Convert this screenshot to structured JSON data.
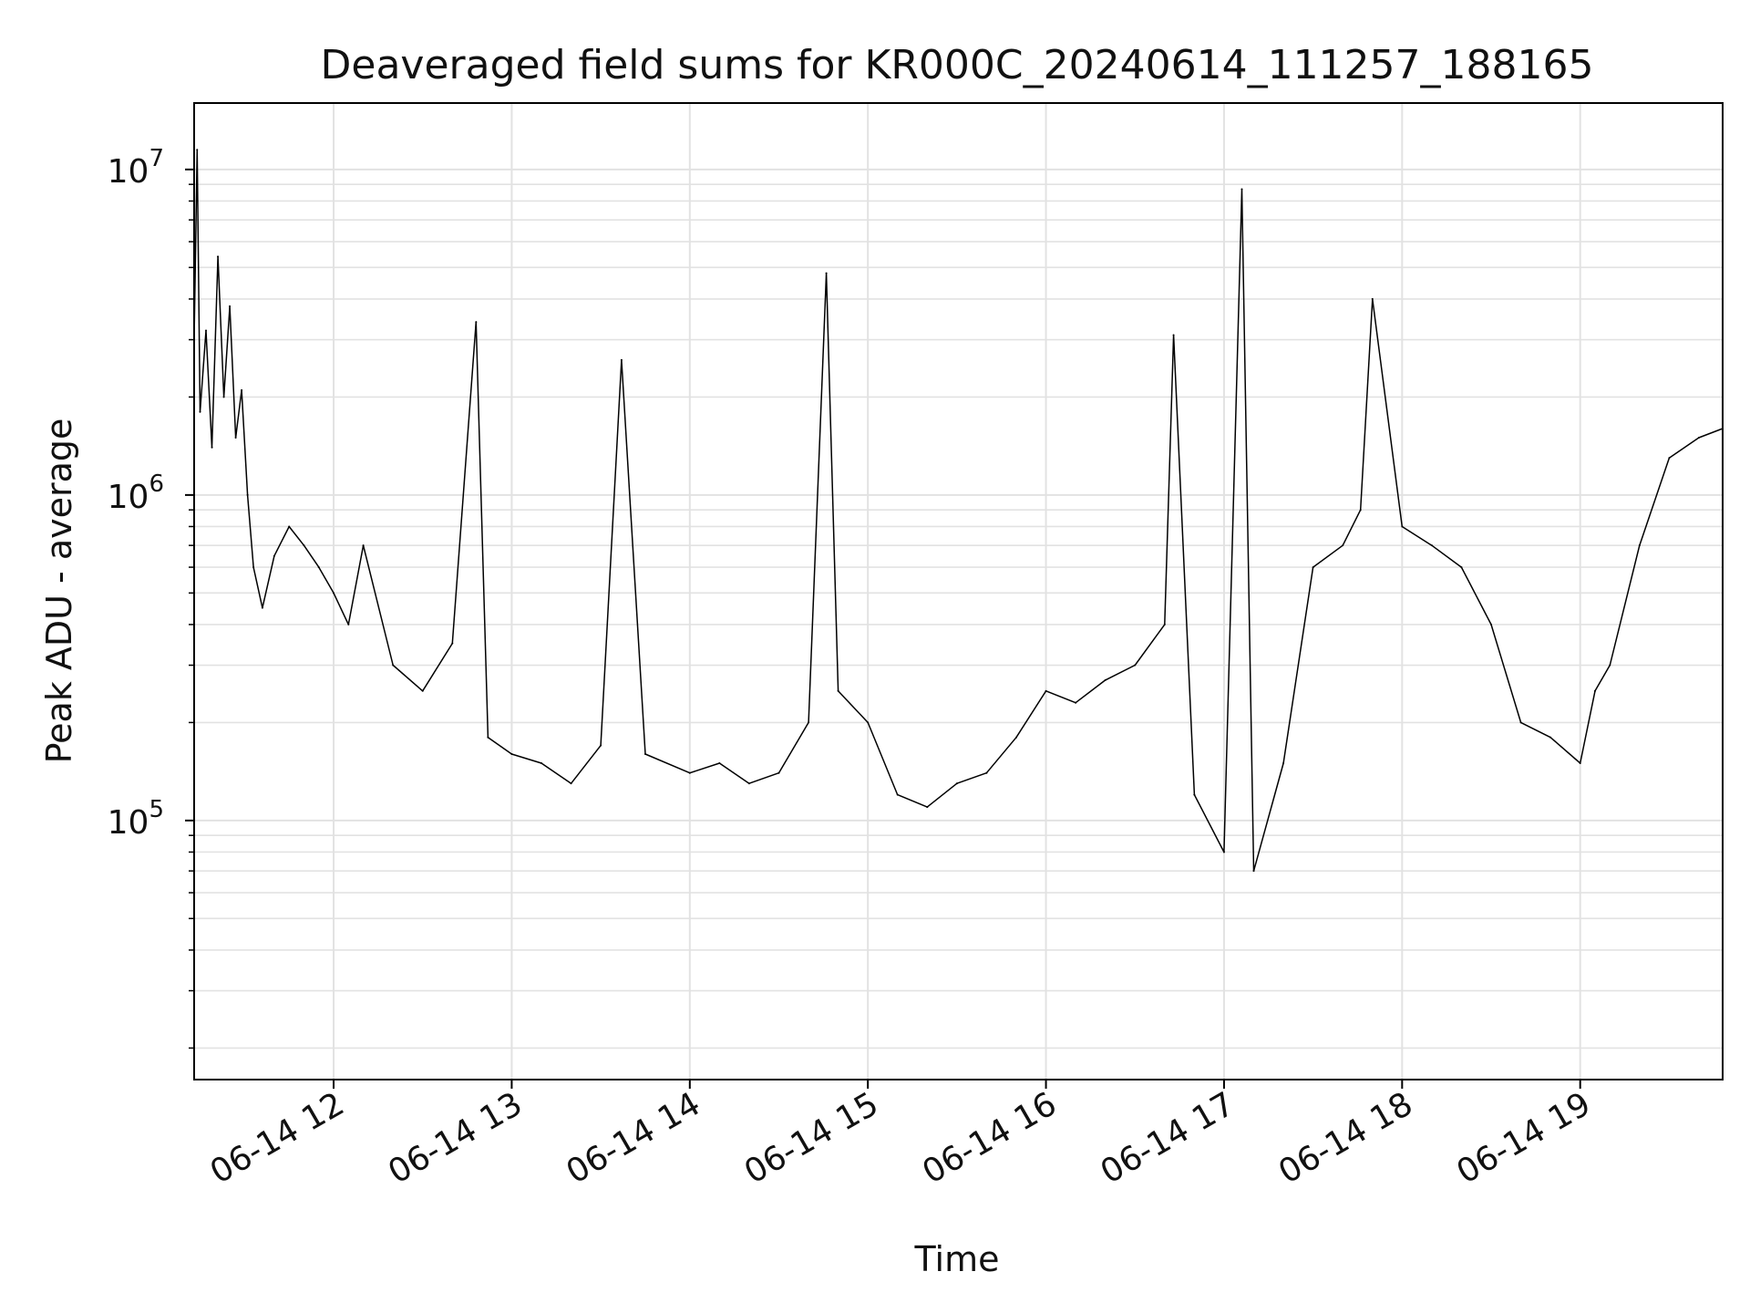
{
  "chart_data": {
    "type": "line",
    "title": "Deaveraged field sums for KR000C_20240614_111257_188165",
    "xlabel": "Time",
    "ylabel": "Peak ADU - average",
    "y_scale": "log",
    "grid": true,
    "line_color": "#000000",
    "grid_color": "#e2e2e2",
    "x_range": [
      "2024-06-14T11:13:00",
      "2024-06-14T19:48:00"
    ],
    "ylim": [
      16000,
      16000000
    ],
    "x_tick_values": [
      "2024-06-14T12:00",
      "2024-06-14T13:00",
      "2024-06-14T14:00",
      "2024-06-14T15:00",
      "2024-06-14T16:00",
      "2024-06-14T17:00",
      "2024-06-14T18:00",
      "2024-06-14T19:00"
    ],
    "x_tick_labels": [
      "06-14 12",
      "06-14 13",
      "06-14 14",
      "06-14 15",
      "06-14 16",
      "06-14 17",
      "06-14 18",
      "06-14 19"
    ],
    "y_ticks": [
      {
        "value": 100000,
        "base": "10",
        "exp": "5"
      },
      {
        "value": 1000000,
        "base": "10",
        "exp": "6"
      },
      {
        "value": 10000000,
        "base": "10",
        "exp": "7"
      }
    ],
    "series": [
      {
        "x": [
          "2024-06-14T11:13",
          "2024-06-14T11:14",
          "2024-06-14T11:15",
          "2024-06-14T11:17",
          "2024-06-14T11:19",
          "2024-06-14T11:21",
          "2024-06-14T11:23",
          "2024-06-14T11:25",
          "2024-06-14T11:27",
          "2024-06-14T11:29",
          "2024-06-14T11:31",
          "2024-06-14T11:33",
          "2024-06-14T11:36",
          "2024-06-14T11:40",
          "2024-06-14T11:45",
          "2024-06-14T11:50",
          "2024-06-14T11:55",
          "2024-06-14T12:00",
          "2024-06-14T12:05",
          "2024-06-14T12:10",
          "2024-06-14T12:20",
          "2024-06-14T12:30",
          "2024-06-14T12:40",
          "2024-06-14T12:48",
          "2024-06-14T12:52",
          "2024-06-14T13:00",
          "2024-06-14T13:10",
          "2024-06-14T13:20",
          "2024-06-14T13:30",
          "2024-06-14T13:37",
          "2024-06-14T13:45",
          "2024-06-14T14:00",
          "2024-06-14T14:10",
          "2024-06-14T14:20",
          "2024-06-14T14:30",
          "2024-06-14T14:40",
          "2024-06-14T14:46",
          "2024-06-14T14:50",
          "2024-06-14T15:00",
          "2024-06-14T15:10",
          "2024-06-14T15:20",
          "2024-06-14T15:30",
          "2024-06-14T15:40",
          "2024-06-14T15:50",
          "2024-06-14T16:00",
          "2024-06-14T16:10",
          "2024-06-14T16:20",
          "2024-06-14T16:30",
          "2024-06-14T16:40",
          "2024-06-14T16:43",
          "2024-06-14T16:50",
          "2024-06-14T17:00",
          "2024-06-14T17:06",
          "2024-06-14T17:10",
          "2024-06-14T17:20",
          "2024-06-14T17:30",
          "2024-06-14T17:40",
          "2024-06-14T17:46",
          "2024-06-14T17:50",
          "2024-06-14T18:00",
          "2024-06-14T18:10",
          "2024-06-14T18:20",
          "2024-06-14T18:30",
          "2024-06-14T18:40",
          "2024-06-14T18:50",
          "2024-06-14T19:00",
          "2024-06-14T19:05",
          "2024-06-14T19:10",
          "2024-06-14T19:20",
          "2024-06-14T19:30",
          "2024-06-14T19:40",
          "2024-06-14T19:48"
        ],
        "y": [
          3000000,
          11500000,
          1800000,
          3200000,
          1400000,
          5400000,
          2000000,
          3800000,
          1500000,
          2100000,
          1000000,
          600000,
          450000,
          650000,
          800000,
          700000,
          600000,
          500000,
          400000,
          700000,
          300000,
          250000,
          350000,
          3400000,
          180000,
          160000,
          150000,
          130000,
          170000,
          2600000,
          160000,
          140000,
          150000,
          130000,
          140000,
          200000,
          4800000,
          250000,
          200000,
          120000,
          110000,
          130000,
          140000,
          180000,
          250000,
          230000,
          270000,
          300000,
          400000,
          3100000,
          120000,
          80000,
          8700000,
          70000,
          150000,
          600000,
          700000,
          900000,
          4000000,
          800000,
          700000,
          600000,
          400000,
          200000,
          180000,
          150000,
          250000,
          300000,
          700000,
          1300000,
          1500000,
          1600000
        ]
      }
    ]
  }
}
